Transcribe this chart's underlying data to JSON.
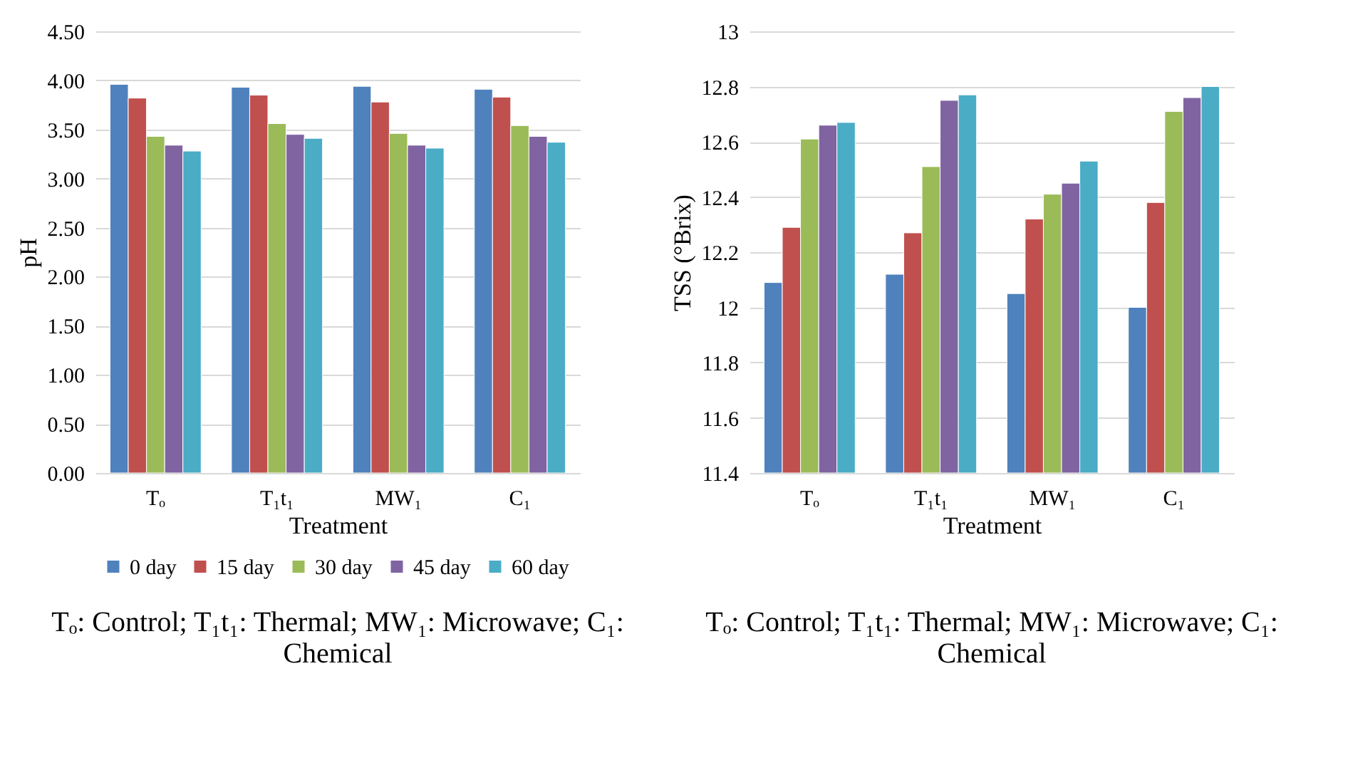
{
  "chart_data": [
    {
      "type": "bar",
      "xlabel": "Treatment",
      "ylabel": "pH",
      "categories": [
        "Tₒ",
        "T₁t₁",
        "MW₁",
        "C₁"
      ],
      "series": [
        {
          "name": "0 day",
          "color": "#4f81bd",
          "values": [
            3.96,
            3.93,
            3.94,
            3.91
          ]
        },
        {
          "name": "15 day",
          "color": "#c0504d",
          "values": [
            3.82,
            3.85,
            3.78,
            3.83
          ]
        },
        {
          "name": "30 day",
          "color": "#9bbb59",
          "values": [
            3.43,
            3.56,
            3.46,
            3.54
          ]
        },
        {
          "name": "45 day",
          "color": "#8064a2",
          "values": [
            3.34,
            3.45,
            3.34,
            3.43
          ]
        },
        {
          "name": "60 day",
          "color": "#4bacc6",
          "values": [
            3.28,
            3.41,
            3.31,
            3.37
          ]
        }
      ],
      "ylim": [
        0,
        4.5
      ],
      "yticks": [
        {
          "value": 0,
          "label": "0.00"
        },
        {
          "value": 0.5,
          "label": "0.50"
        },
        {
          "value": 1,
          "label": "1.00"
        },
        {
          "value": 1.5,
          "label": "1.50"
        },
        {
          "value": 2,
          "label": "2.00"
        },
        {
          "value": 2.5,
          "label": "2.50"
        },
        {
          "value": 3,
          "label": "3.00"
        },
        {
          "value": 3.5,
          "label": "3.50"
        },
        {
          "value": 4,
          "label": "4.00"
        },
        {
          "value": 4.5,
          "label": "4.50"
        }
      ],
      "grid": "y",
      "legend": "bottom",
      "annotations": [
        "Tₒ: Control; T₁t₁: Thermal; MW₁: Microwave; C₁: Chemical"
      ]
    },
    {
      "type": "bar",
      "xlabel": "Treatment",
      "ylabel": "TSS (°Brix)",
      "categories": [
        "Tₒ",
        "T₁t₁",
        "MW₁",
        "C₁"
      ],
      "series": [
        {
          "name": "0 day",
          "color": "#4f81bd",
          "values": [
            12.09,
            12.12,
            12.05,
            12.0
          ]
        },
        {
          "name": "15 day",
          "color": "#c0504d",
          "values": [
            12.29,
            12.27,
            12.32,
            12.38
          ]
        },
        {
          "name": "30 day",
          "color": "#9bbb59",
          "values": [
            12.61,
            12.51,
            12.41,
            12.71
          ]
        },
        {
          "name": "45 day",
          "color": "#8064a2",
          "values": [
            12.66,
            12.75,
            12.45,
            12.76
          ]
        },
        {
          "name": "60 day",
          "color": "#4bacc6",
          "values": [
            12.67,
            12.77,
            12.53,
            12.8
          ]
        }
      ],
      "ylim": [
        11.4,
        13
      ],
      "yticks": [
        11.4,
        11.6,
        11.8,
        12,
        12.2,
        12.4,
        12.6,
        12.8,
        13
      ],
      "grid": "y",
      "legend": "bottom",
      "annotations": [
        "Tₒ: Control; T₁t₁: Thermal; MW₁: Microwave; C₁: Chemical"
      ]
    }
  ]
}
